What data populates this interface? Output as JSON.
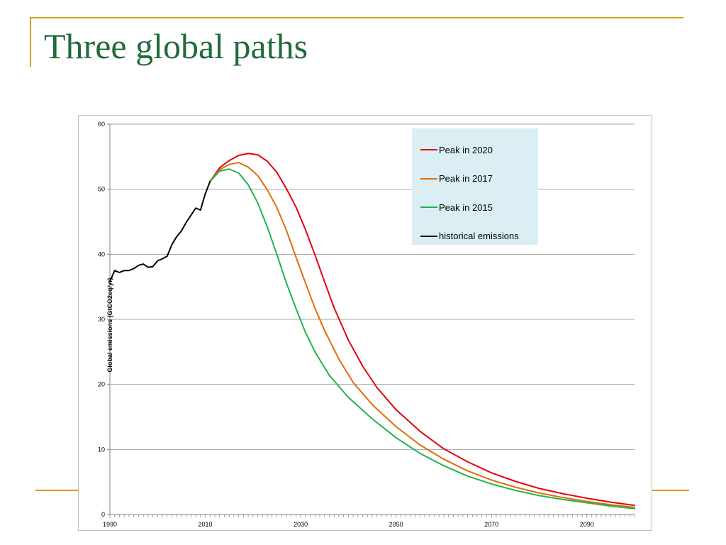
{
  "slide": {
    "title": "Three global paths",
    "accent_color": "#d4a017",
    "title_color": "#1f6b3a"
  },
  "chart_data": {
    "type": "line",
    "title": "",
    "xlabel": "",
    "ylabel": "Global emissions (GtCO2eq/yr)",
    "xlim": [
      1990,
      2100
    ],
    "ylim": [
      0,
      60
    ],
    "x_ticks": [
      "1990",
      "2010",
      "2030",
      "2050",
      "2070",
      "2090"
    ],
    "y_ticks": [
      "0",
      "10",
      "20",
      "30",
      "40",
      "50",
      "60"
    ],
    "grid": "horizontal",
    "legend_position": "top-right",
    "series": [
      {
        "name": "Peak in 2020",
        "color": "#e3000f",
        "points": [
          [
            2011,
            51.2
          ],
          [
            2013,
            53.3
          ],
          [
            2015,
            54.4
          ],
          [
            2017,
            55.2
          ],
          [
            2019,
            55.5
          ],
          [
            2021,
            55.3
          ],
          [
            2023,
            54.3
          ],
          [
            2025,
            52.6
          ],
          [
            2027,
            50.1
          ],
          [
            2029,
            47.3
          ],
          [
            2031,
            43.8
          ],
          [
            2033,
            39.9
          ],
          [
            2035,
            35.8
          ],
          [
            2037,
            31.8
          ],
          [
            2040,
            26.8
          ],
          [
            2043,
            22.8
          ],
          [
            2046,
            19.5
          ],
          [
            2050,
            16.1
          ],
          [
            2055,
            12.8
          ],
          [
            2060,
            10.1
          ],
          [
            2065,
            8.1
          ],
          [
            2070,
            6.4
          ],
          [
            2075,
            5.1
          ],
          [
            2080,
            4.0
          ],
          [
            2085,
            3.2
          ],
          [
            2090,
            2.5
          ],
          [
            2095,
            1.9
          ],
          [
            2100,
            1.4
          ]
        ]
      },
      {
        "name": "Peak in 2017",
        "color": "#e36c0a",
        "points": [
          [
            2011,
            51.2
          ],
          [
            2013,
            53.0
          ],
          [
            2015,
            53.8
          ],
          [
            2017,
            54.1
          ],
          [
            2019,
            53.4
          ],
          [
            2021,
            52.1
          ],
          [
            2023,
            49.9
          ],
          [
            2025,
            47.2
          ],
          [
            2027,
            43.7
          ],
          [
            2029,
            39.6
          ],
          [
            2031,
            35.6
          ],
          [
            2033,
            31.7
          ],
          [
            2035,
            28.3
          ],
          [
            2038,
            23.9
          ],
          [
            2041,
            20.3
          ],
          [
            2045,
            16.9
          ],
          [
            2050,
            13.5
          ],
          [
            2055,
            10.7
          ],
          [
            2060,
            8.5
          ],
          [
            2065,
            6.7
          ],
          [
            2070,
            5.3
          ],
          [
            2075,
            4.2
          ],
          [
            2080,
            3.3
          ],
          [
            2085,
            2.6
          ],
          [
            2090,
            2.0
          ],
          [
            2095,
            1.5
          ],
          [
            2100,
            1.1
          ]
        ]
      },
      {
        "name": "Peak in 2015",
        "color": "#22b24c",
        "points": [
          [
            2011,
            51.2
          ],
          [
            2013,
            52.8
          ],
          [
            2015,
            53.1
          ],
          [
            2017,
            52.5
          ],
          [
            2019,
            50.7
          ],
          [
            2021,
            47.9
          ],
          [
            2023,
            44.2
          ],
          [
            2025,
            40.0
          ],
          [
            2027,
            35.6
          ],
          [
            2029,
            31.7
          ],
          [
            2031,
            28.0
          ],
          [
            2033,
            25.0
          ],
          [
            2036,
            21.4
          ],
          [
            2040,
            18.0
          ],
          [
            2045,
            14.7
          ],
          [
            2050,
            11.8
          ],
          [
            2055,
            9.4
          ],
          [
            2060,
            7.5
          ],
          [
            2065,
            5.9
          ],
          [
            2070,
            4.7
          ],
          [
            2075,
            3.7
          ],
          [
            2080,
            2.9
          ],
          [
            2085,
            2.3
          ],
          [
            2090,
            1.8
          ],
          [
            2095,
            1.3
          ],
          [
            2100,
            0.9
          ]
        ]
      },
      {
        "name": "historical emissions",
        "color": "#000000",
        "points": [
          [
            1990,
            35.8
          ],
          [
            1991,
            37.5
          ],
          [
            1992,
            37.2
          ],
          [
            1993,
            37.5
          ],
          [
            1994,
            37.5
          ],
          [
            1995,
            37.8
          ],
          [
            1996,
            38.3
          ],
          [
            1997,
            38.5
          ],
          [
            1998,
            38.0
          ],
          [
            1999,
            38.1
          ],
          [
            2000,
            39.0
          ],
          [
            2001,
            39.3
          ],
          [
            2002,
            39.7
          ],
          [
            2003,
            41.5
          ],
          [
            2004,
            42.7
          ],
          [
            2005,
            43.6
          ],
          [
            2006,
            44.9
          ],
          [
            2007,
            46.0
          ],
          [
            2008,
            47.1
          ],
          [
            2009,
            46.8
          ],
          [
            2010,
            49.3
          ],
          [
            2011,
            51.2
          ]
        ]
      }
    ]
  }
}
